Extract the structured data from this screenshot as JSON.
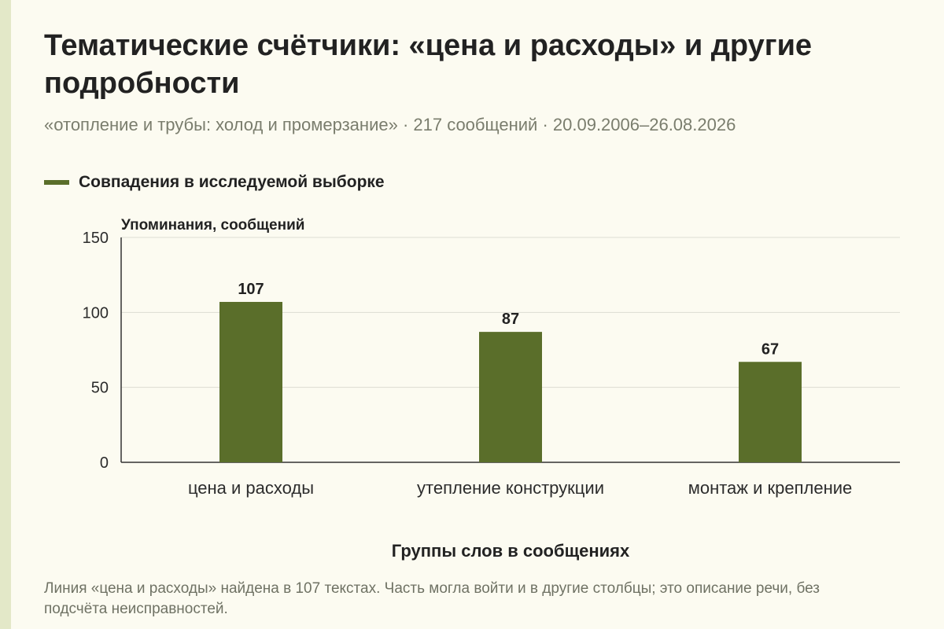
{
  "title": "Тематические счётчики: «цена и расходы» и другие подробности",
  "subtitle": "«отопление и трубы: холод и промерзание» · 217 сообщений · 20.09.2006–26.08.2026",
  "note": "Линия «цена и расходы» найдена в 107 текстах. Часть могла войти и в другие столбцы; это описание речи, без подсчёта неисправностей.",
  "colors": {
    "background": "#fcfbf1",
    "bar": "#5a6e2a",
    "grid": "#dcdcd2",
    "axis": "#333333",
    "accent_strip": "#e3e8c8"
  },
  "chart_data": {
    "type": "bar",
    "title": "Тематические счётчики: «цена и расходы» и другие подробности",
    "xlabel": "Группы слов в сообщениях",
    "ylabel": "Упоминания, сообщений",
    "categories": [
      "цена и расходы",
      "утепление конструкции",
      "монтаж и крепление"
    ],
    "series": [
      {
        "name": "Совпадения в исследуемой выборке",
        "values": [
          107,
          87,
          67
        ]
      }
    ],
    "ylim": [
      0,
      150
    ],
    "yticks": [
      0,
      50,
      100,
      150
    ],
    "grid": true,
    "legend": "top-left",
    "data_labels": true
  }
}
